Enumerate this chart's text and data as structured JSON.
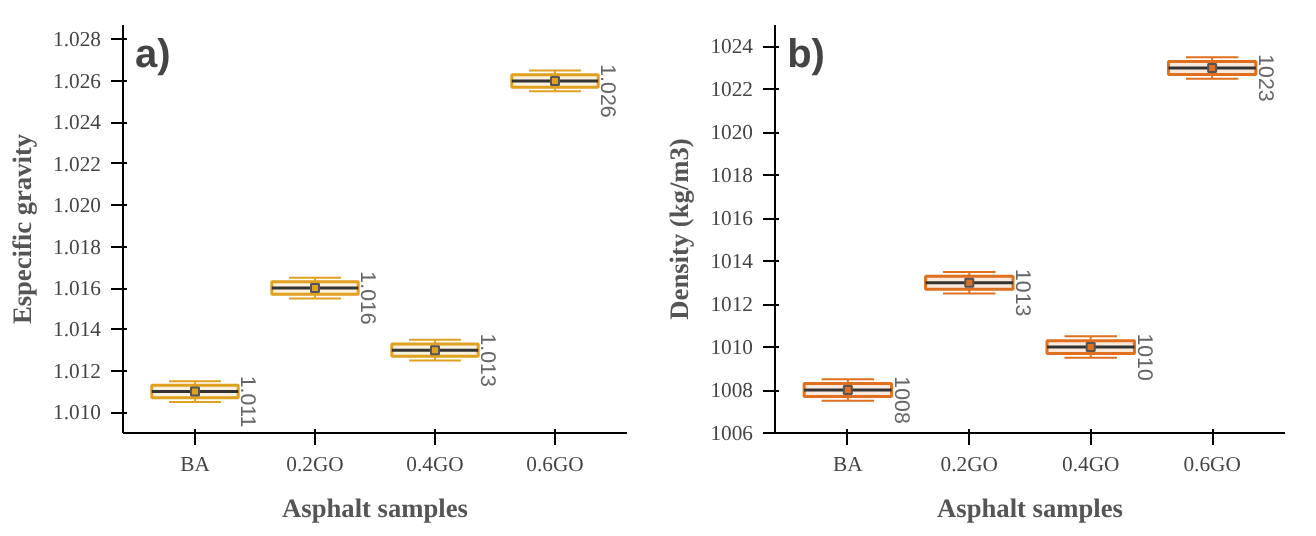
{
  "chart_data": [
    {
      "type": "box",
      "title": "a)",
      "xlabel": "Asphalt samples",
      "ylabel": "Especific gravity",
      "categories": [
        "BA",
        "0.2GO",
        "0.4GO",
        "0.6GO"
      ],
      "color": "#e0a020",
      "boxes": [
        {
          "low": 1.0105,
          "q1": 1.0107,
          "median": 1.011,
          "q3": 1.0113,
          "high": 1.0115,
          "mean": 1.011
        },
        {
          "low": 1.0155,
          "q1": 1.0157,
          "median": 1.016,
          "q3": 1.0163,
          "high": 1.0165,
          "mean": 1.016
        },
        {
          "low": 1.0125,
          "q1": 1.0127,
          "median": 1.013,
          "q3": 1.0133,
          "high": 1.0135,
          "mean": 1.013
        },
        {
          "low": 1.0255,
          "q1": 1.0257,
          "median": 1.026,
          "q3": 1.0263,
          "high": 1.0265,
          "mean": 1.026
        }
      ],
      "ylim": [
        1.009,
        1.0287
      ],
      "yticks": [
        {
          "value": 1.01,
          "label": "1.010"
        },
        1.012,
        1.014,
        1.016,
        1.018,
        {
          "value": 1.02,
          "label": "1.020"
        },
        1.022,
        1.024,
        1.026,
        1.028
      ],
      "annotations": [
        {
          "text": "1.011",
          "x": "BA",
          "y": 1.011
        },
        {
          "text": "1.016",
          "x": "0.2GO",
          "y": 1.016
        },
        {
          "text": "1.013",
          "x": "0.4GO",
          "y": 1.013
        },
        {
          "text": "1.026",
          "x": "0.6GO",
          "y": 1.026
        }
      ],
      "grid": false
    },
    {
      "type": "box",
      "title": "b)",
      "xlabel": "Asphalt samples",
      "ylabel": "Density (kg/m3)",
      "categories": [
        "BA",
        "0.2GO",
        "0.4GO",
        "0.6GO"
      ],
      "color": "#e07020",
      "boxes": [
        {
          "low": 1007.5,
          "q1": 1007.7,
          "median": 1008,
          "q3": 1008.3,
          "high": 1008.5,
          "mean": 1008
        },
        {
          "low": 1012.5,
          "q1": 1012.7,
          "median": 1013,
          "q3": 1013.3,
          "high": 1013.5,
          "mean": 1013
        },
        {
          "low": 1009.5,
          "q1": 1009.7,
          "median": 1010,
          "q3": 1010.3,
          "high": 1010.5,
          "mean": 1010
        },
        {
          "low": 1022.5,
          "q1": 1022.7,
          "median": 1023,
          "q3": 1023.3,
          "high": 1023.5,
          "mean": 1023
        }
      ],
      "ylim": [
        1006,
        1025
      ],
      "yticks": [
        1006,
        1008,
        1010,
        1012,
        1014,
        1016,
        1018,
        1020,
        1022,
        1024
      ],
      "annotations": [
        {
          "text": "1008",
          "x": "BA",
          "y": 1008
        },
        {
          "text": "1013",
          "x": "0.2GO",
          "y": 1013
        },
        {
          "text": "1010",
          "x": "0.4GO",
          "y": 1010
        },
        {
          "text": "1023",
          "x": "0.6GO",
          "y": 1023
        }
      ],
      "grid": false
    }
  ]
}
